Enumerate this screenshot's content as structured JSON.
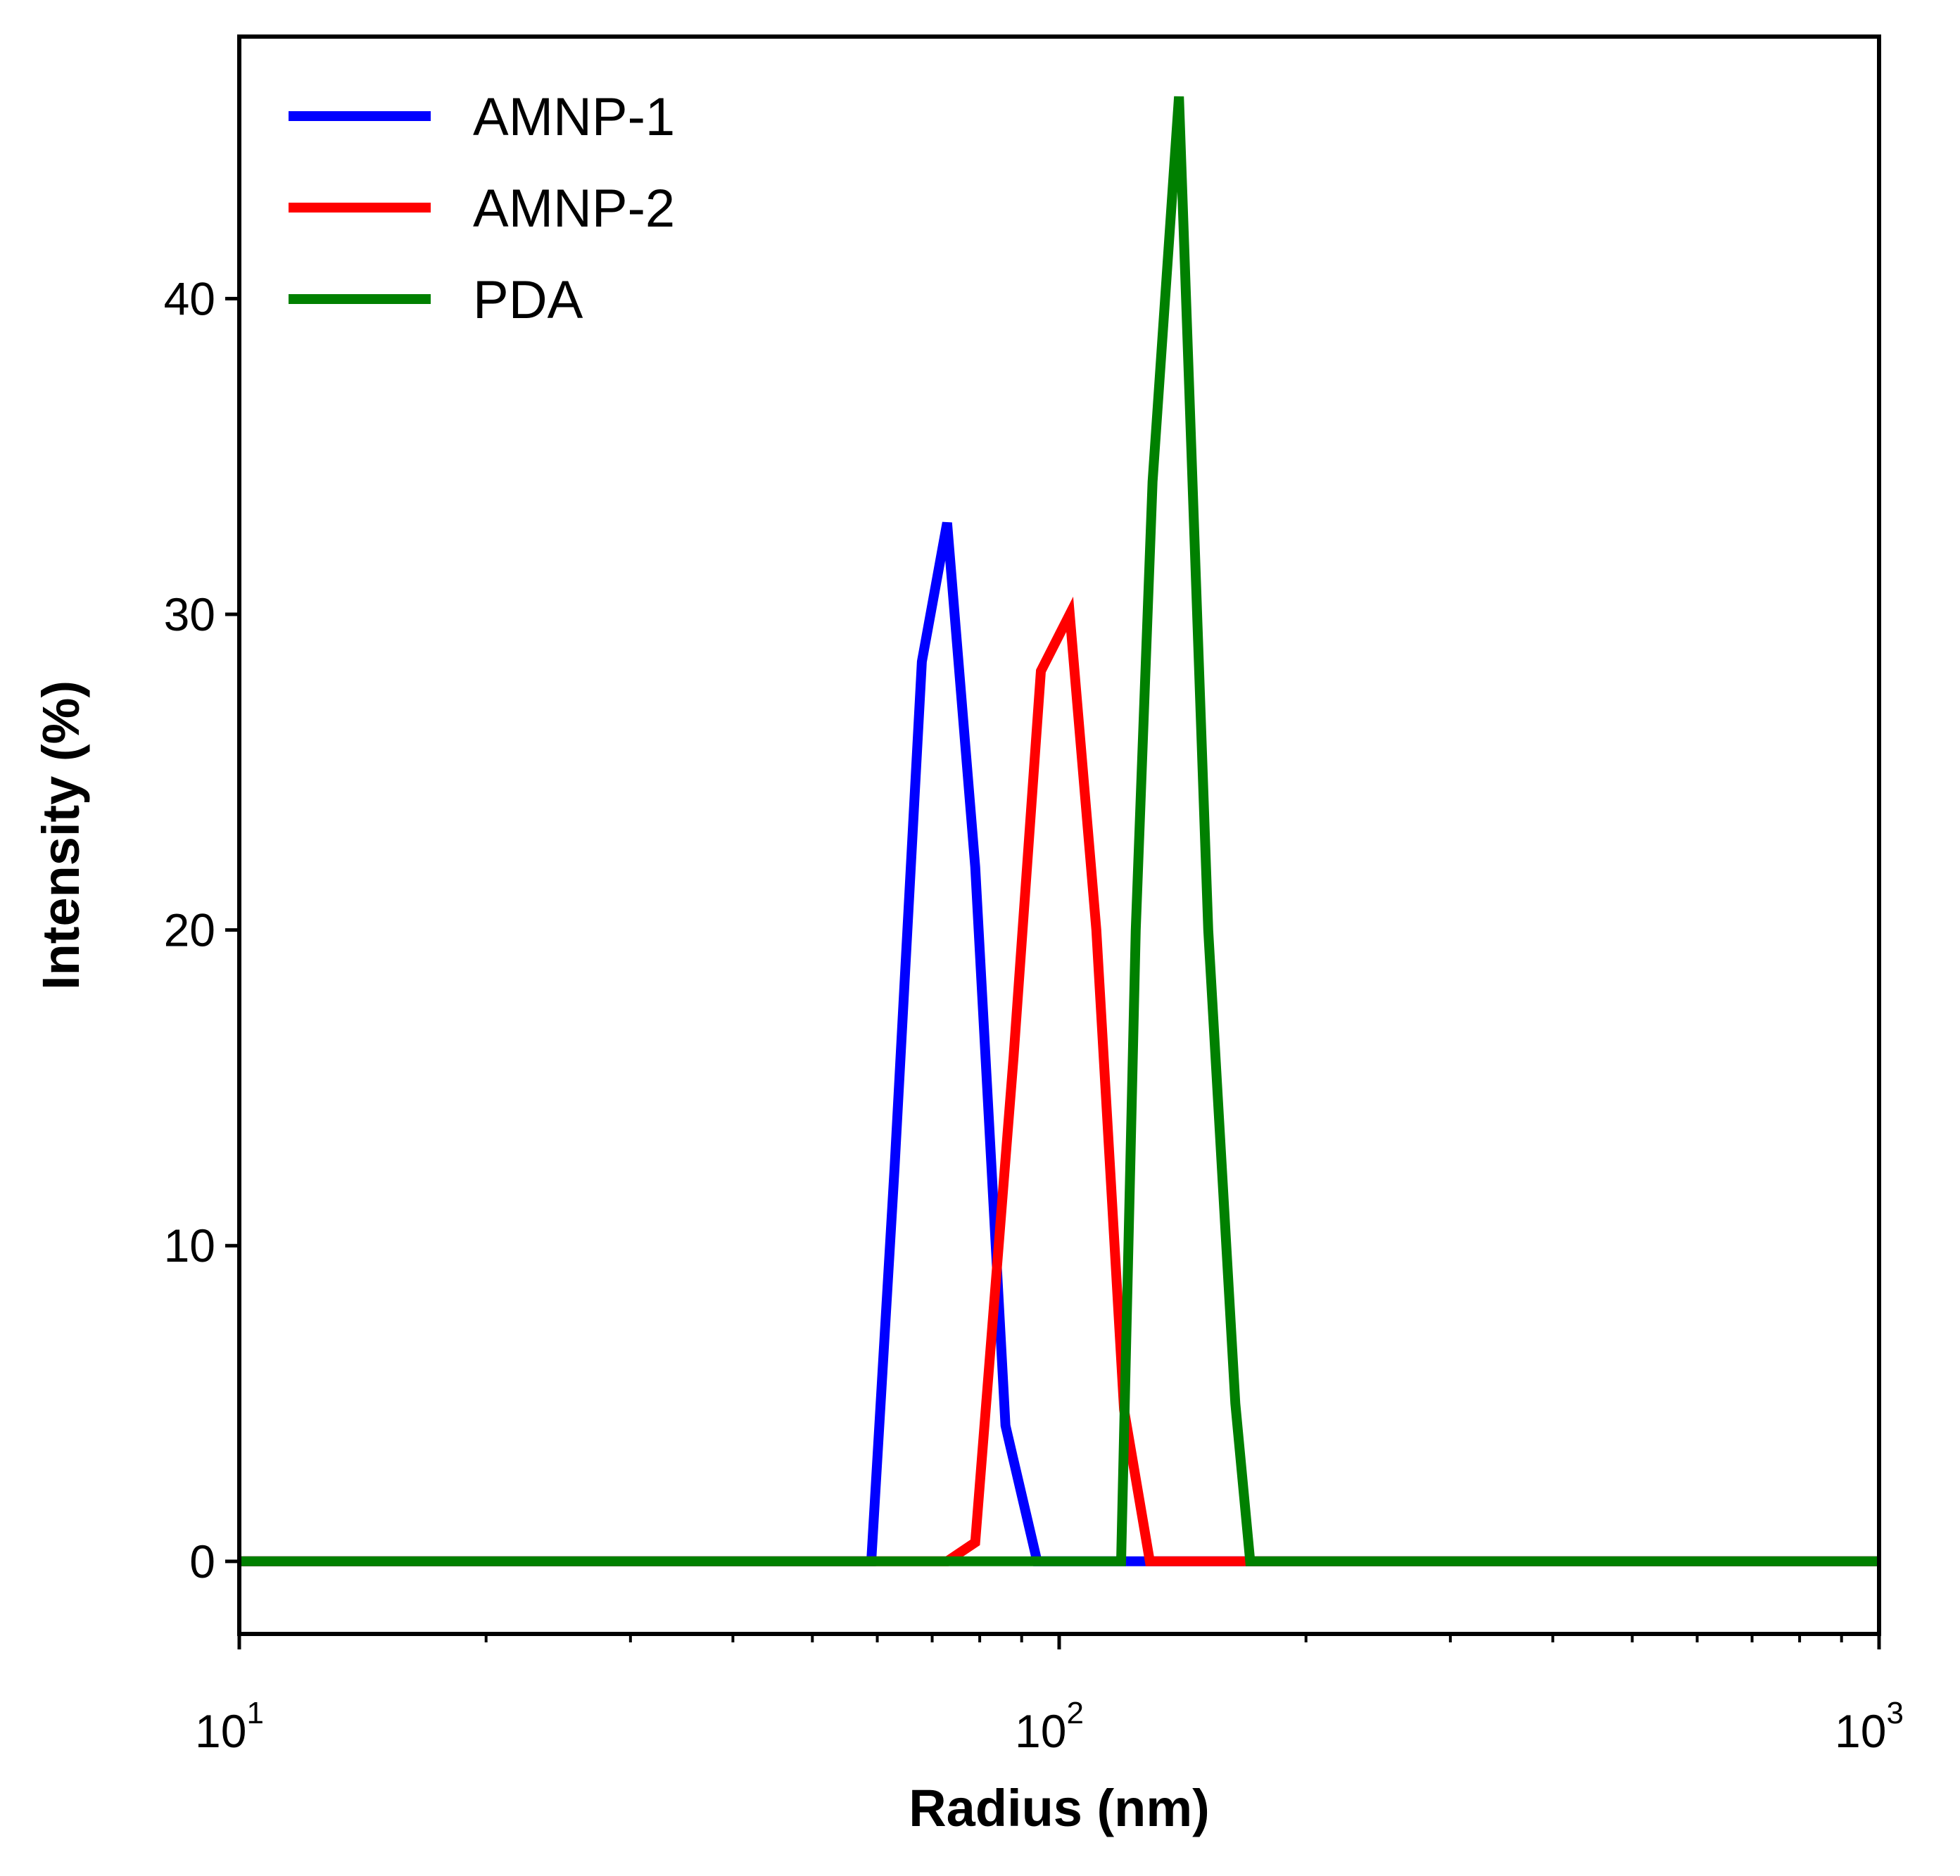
{
  "chart_data": {
    "type": "line",
    "xlabel": "Radius (nm)",
    "ylabel": "Intensity (%)",
    "xscale": "log",
    "xlim": [
      10,
      1000
    ],
    "ylim": [
      -2.3,
      48.3
    ],
    "x_ticks": [
      {
        "value": 10,
        "base": "10",
        "exp": "1"
      },
      {
        "value": 100,
        "base": "10",
        "exp": "2"
      },
      {
        "value": 1000,
        "base": "10",
        "exp": "3"
      }
    ],
    "y_ticks": [
      {
        "value": 0,
        "label": "0"
      },
      {
        "value": 10,
        "label": "10"
      },
      {
        "value": 20,
        "label": "20"
      },
      {
        "value": 30,
        "label": "30"
      },
      {
        "value": 40,
        "label": "40"
      }
    ],
    "grid": false,
    "legend_position": "top-left",
    "series": [
      {
        "name": "AMNP-1",
        "color": "#0000ff",
        "points": [
          [
            10,
            0
          ],
          [
            59,
            0
          ],
          [
            63,
            12.5
          ],
          [
            68,
            28.5
          ],
          [
            73,
            32.9
          ],
          [
            79,
            22
          ],
          [
            86,
            4.3
          ],
          [
            94,
            0
          ],
          [
            1000,
            0
          ]
        ]
      },
      {
        "name": "AMNP-2",
        "color": "#ff0000",
        "points": [
          [
            10,
            0
          ],
          [
            73,
            0
          ],
          [
            79,
            0.6
          ],
          [
            88,
            16
          ],
          [
            95,
            28.2
          ],
          [
            103,
            30
          ],
          [
            111,
            20
          ],
          [
            120,
            4.8
          ],
          [
            129,
            0
          ],
          [
            167,
            0
          ],
          [
            1000,
            0
          ]
        ]
      },
      {
        "name": "PDA",
        "color": "#008000",
        "points": [
          [
            10,
            0
          ],
          [
            119,
            0
          ],
          [
            124,
            20
          ],
          [
            130,
            34.2
          ],
          [
            140,
            46.4
          ],
          [
            152,
            20
          ],
          [
            164,
            5
          ],
          [
            171,
            0
          ],
          [
            1000,
            0
          ]
        ]
      }
    ]
  }
}
